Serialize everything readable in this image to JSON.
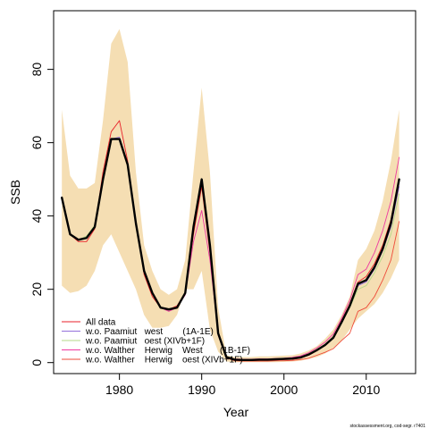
{
  "chart_data": {
    "type": "line",
    "xlabel": "Year",
    "ylabel": "SSB",
    "xlim": [
      1972,
      2016
    ],
    "ylim": [
      -3,
      96
    ],
    "x_ticks": [
      1980,
      1990,
      2000,
      2010
    ],
    "y_ticks": [
      0,
      20,
      40,
      60,
      80
    ],
    "grid": false,
    "legend_position": "bottom-left",
    "x": [
      1973,
      1974,
      1975,
      1976,
      1977,
      1978,
      1979,
      1980,
      1981,
      1982,
      1983,
      1984,
      1985,
      1986,
      1987,
      1988,
      1989,
      1990,
      1991,
      1992,
      1993,
      1994,
      1995,
      1996,
      1997,
      1998,
      1999,
      2000,
      2001,
      2002,
      2003,
      2004,
      2005,
      2006,
      2007,
      2008,
      2009,
      2010,
      2011,
      2012,
      2013,
      2014
    ],
    "band": {
      "color": "#f5deb3",
      "lower": [
        21,
        19,
        19.5,
        21,
        25,
        32,
        35,
        30,
        25,
        20,
        13,
        9.5,
        9.5,
        10,
        13,
        20,
        20,
        25,
        9,
        3,
        0.3,
        0.1,
        0.1,
        0.1,
        0.1,
        0.1,
        0.1,
        0.2,
        0.3,
        0.5,
        1,
        1.5,
        2.5,
        4,
        6,
        9,
        12,
        14,
        16,
        19,
        23,
        28
      ],
      "upper": [
        69,
        51,
        47.5,
        47.5,
        49,
        66,
        87,
        91,
        82,
        52,
        32,
        25,
        20,
        18.5,
        20,
        28,
        52,
        75,
        52,
        15,
        2,
        1.5,
        1.5,
        1.5,
        1.7,
        1.7,
        1.8,
        1.9,
        2,
        2.5,
        3.3,
        4.5,
        6.5,
        9,
        13,
        18,
        28,
        31,
        36,
        44,
        55,
        69
      ]
    },
    "series": [
      {
        "name": "",
        "color": "#000000",
        "width": 2.4,
        "values": [
          45,
          35,
          33.5,
          34,
          37,
          50,
          61,
          61,
          54,
          38,
          25,
          19,
          15,
          14.5,
          15,
          19,
          37,
          50,
          32,
          8,
          1.5,
          0.8,
          0.7,
          0.7,
          0.8,
          0.8,
          0.9,
          1,
          1.1,
          1.4,
          2.2,
          3.4,
          4.8,
          6.8,
          11,
          15.5,
          21.5,
          22.5,
          26,
          31,
          38,
          50
        ]
      },
      {
        "name": "All data",
        "color": "#e8222a",
        "width": 0.9,
        "values": [
          45,
          35,
          33,
          33,
          36.5,
          52,
          63,
          66,
          55,
          38,
          24,
          18,
          15,
          14.5,
          15.5,
          19,
          35,
          48,
          30,
          7.5,
          1.2,
          0.6,
          0.5,
          0.5,
          0.6,
          0.6,
          0.7,
          0.8,
          0.9,
          1.2,
          2,
          3.2,
          4.8,
          7,
          11.5,
          16,
          22,
          23.5,
          27,
          32,
          39,
          50
        ]
      },
      {
        "name": "w.o. Paamiut   west        (1A-1E)",
        "color": "#9370db",
        "width": 0.9,
        "values": [
          45,
          35,
          33.5,
          34,
          37,
          50,
          61,
          61.5,
          54,
          38,
          25,
          19,
          15,
          14.5,
          15,
          19,
          37,
          50,
          32,
          8,
          1.5,
          0.8,
          0.7,
          0.7,
          0.8,
          0.8,
          0.9,
          1,
          1.1,
          1.4,
          2.2,
          3.4,
          4.8,
          6.8,
          11,
          15.5,
          21,
          22,
          25.5,
          30.5,
          37,
          48
        ]
      },
      {
        "name": "w.o. Paamiut   oest (XIVb+1F)",
        "color": "#b5d98a",
        "width": 0.9,
        "values": [
          45,
          35,
          33.5,
          34.5,
          37.5,
          50,
          61,
          61,
          54,
          38,
          25,
          19,
          15,
          14.5,
          15,
          19,
          37,
          50,
          32,
          8,
          1.5,
          0.8,
          0.7,
          0.7,
          0.8,
          0.8,
          0.9,
          1,
          1.1,
          1.4,
          2.3,
          3.5,
          5,
          7,
          11,
          15,
          20,
          21,
          24.5,
          29,
          35,
          46
        ]
      },
      {
        "name": "w.o. Walther    Herwig    West       (1B-1F)",
        "color": "#ee3aa0",
        "width": 0.9,
        "values": [
          45,
          35,
          33.5,
          34,
          37,
          50,
          61,
          61,
          54,
          38,
          25,
          19,
          15,
          14,
          15,
          18.5,
          33,
          41.5,
          28,
          8,
          1.6,
          1,
          0.9,
          0.9,
          1,
          1,
          1.1,
          1.2,
          1.4,
          1.8,
          2.7,
          4,
          5.6,
          7.8,
          12,
          17,
          24,
          25.5,
          30,
          36,
          44,
          56
        ]
      },
      {
        "name": "w.o. Walther    Herwig    oest (XIVb+1F)",
        "color": "#ee4b3a",
        "width": 0.9,
        "values": [
          45,
          35,
          33.5,
          34,
          37,
          50,
          61,
          61,
          54,
          38,
          25,
          19,
          15,
          14.5,
          15,
          19,
          37,
          50,
          32,
          8,
          1.3,
          0.5,
          0.4,
          0.4,
          0.4,
          0.4,
          0.5,
          0.5,
          0.6,
          0.8,
          1.2,
          2,
          2.8,
          3.8,
          6,
          8,
          14,
          15,
          18,
          22.5,
          28,
          38.5
        ]
      }
    ],
    "credit": "stockassessment.org, cod-segr. r7401"
  }
}
